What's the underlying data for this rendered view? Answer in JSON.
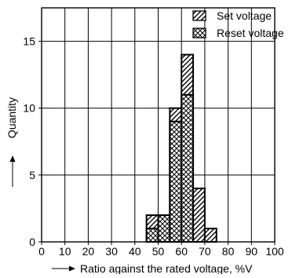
{
  "chart_data": {
    "type": "bar",
    "xlabel": "Ratio against the rated voltage, %V",
    "ylabel": "Quantity",
    "xlim": [
      0,
      100
    ],
    "ylim": [
      0,
      17.5
    ],
    "xticks": [
      "0",
      "10",
      "20",
      "30",
      "40",
      "50",
      "60",
      "70",
      "80",
      "90",
      "100"
    ],
    "yticks": [
      "0",
      "5",
      "10",
      "15"
    ],
    "grid": true,
    "legend_position": "top-right",
    "bin_width": 5,
    "series": [
      {
        "name": "Set voltage",
        "pattern": "diagonal-hatch",
        "x": [
          45,
          50,
          55,
          60,
          65,
          70
        ],
        "values": [
          2,
          2,
          10,
          14,
          4,
          1
        ]
      },
      {
        "name": "Reset voltage",
        "pattern": "cross-hatch",
        "x": [
          45,
          50,
          55,
          60
        ],
        "values": [
          1,
          2,
          9,
          11
        ]
      }
    ]
  }
}
